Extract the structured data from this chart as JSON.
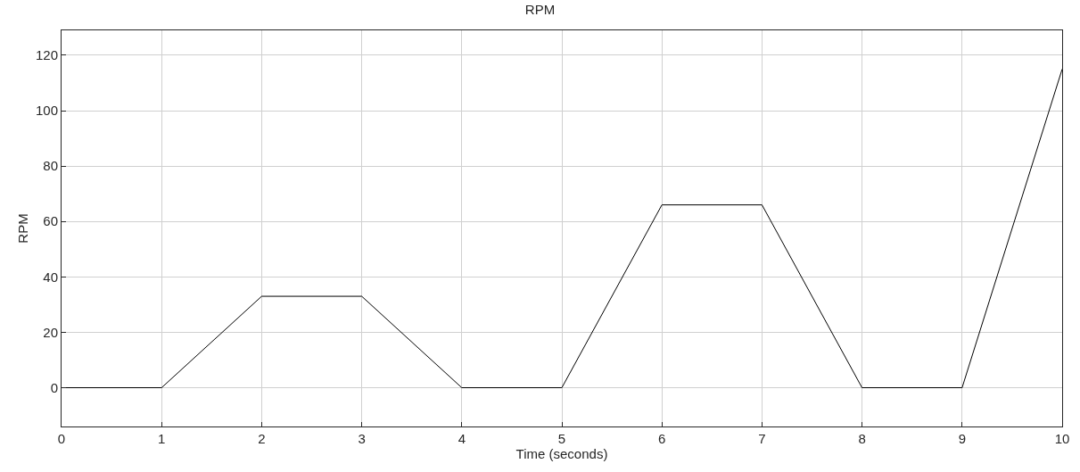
{
  "chart_data": {
    "type": "line",
    "title": "RPM",
    "xlabel": "Time (seconds)",
    "ylabel": "RPM",
    "x": [
      0,
      1,
      2,
      3,
      4,
      5,
      6,
      7,
      8,
      9,
      10
    ],
    "series": [
      {
        "color": "#000000",
        "values": [
          0,
          0,
          33,
          33,
          0,
          0,
          66,
          66,
          0,
          0,
          115
        ]
      }
    ],
    "xlim": [
      0,
      10
    ],
    "xticks": [
      0,
      1,
      2,
      3,
      4,
      5,
      6,
      7,
      8,
      9,
      10
    ],
    "ylim": [
      -14,
      129
    ],
    "yticks": [
      0,
      20,
      40,
      60,
      80,
      100,
      120
    ],
    "grid": true,
    "marker": "none",
    "line_style": "solid"
  }
}
